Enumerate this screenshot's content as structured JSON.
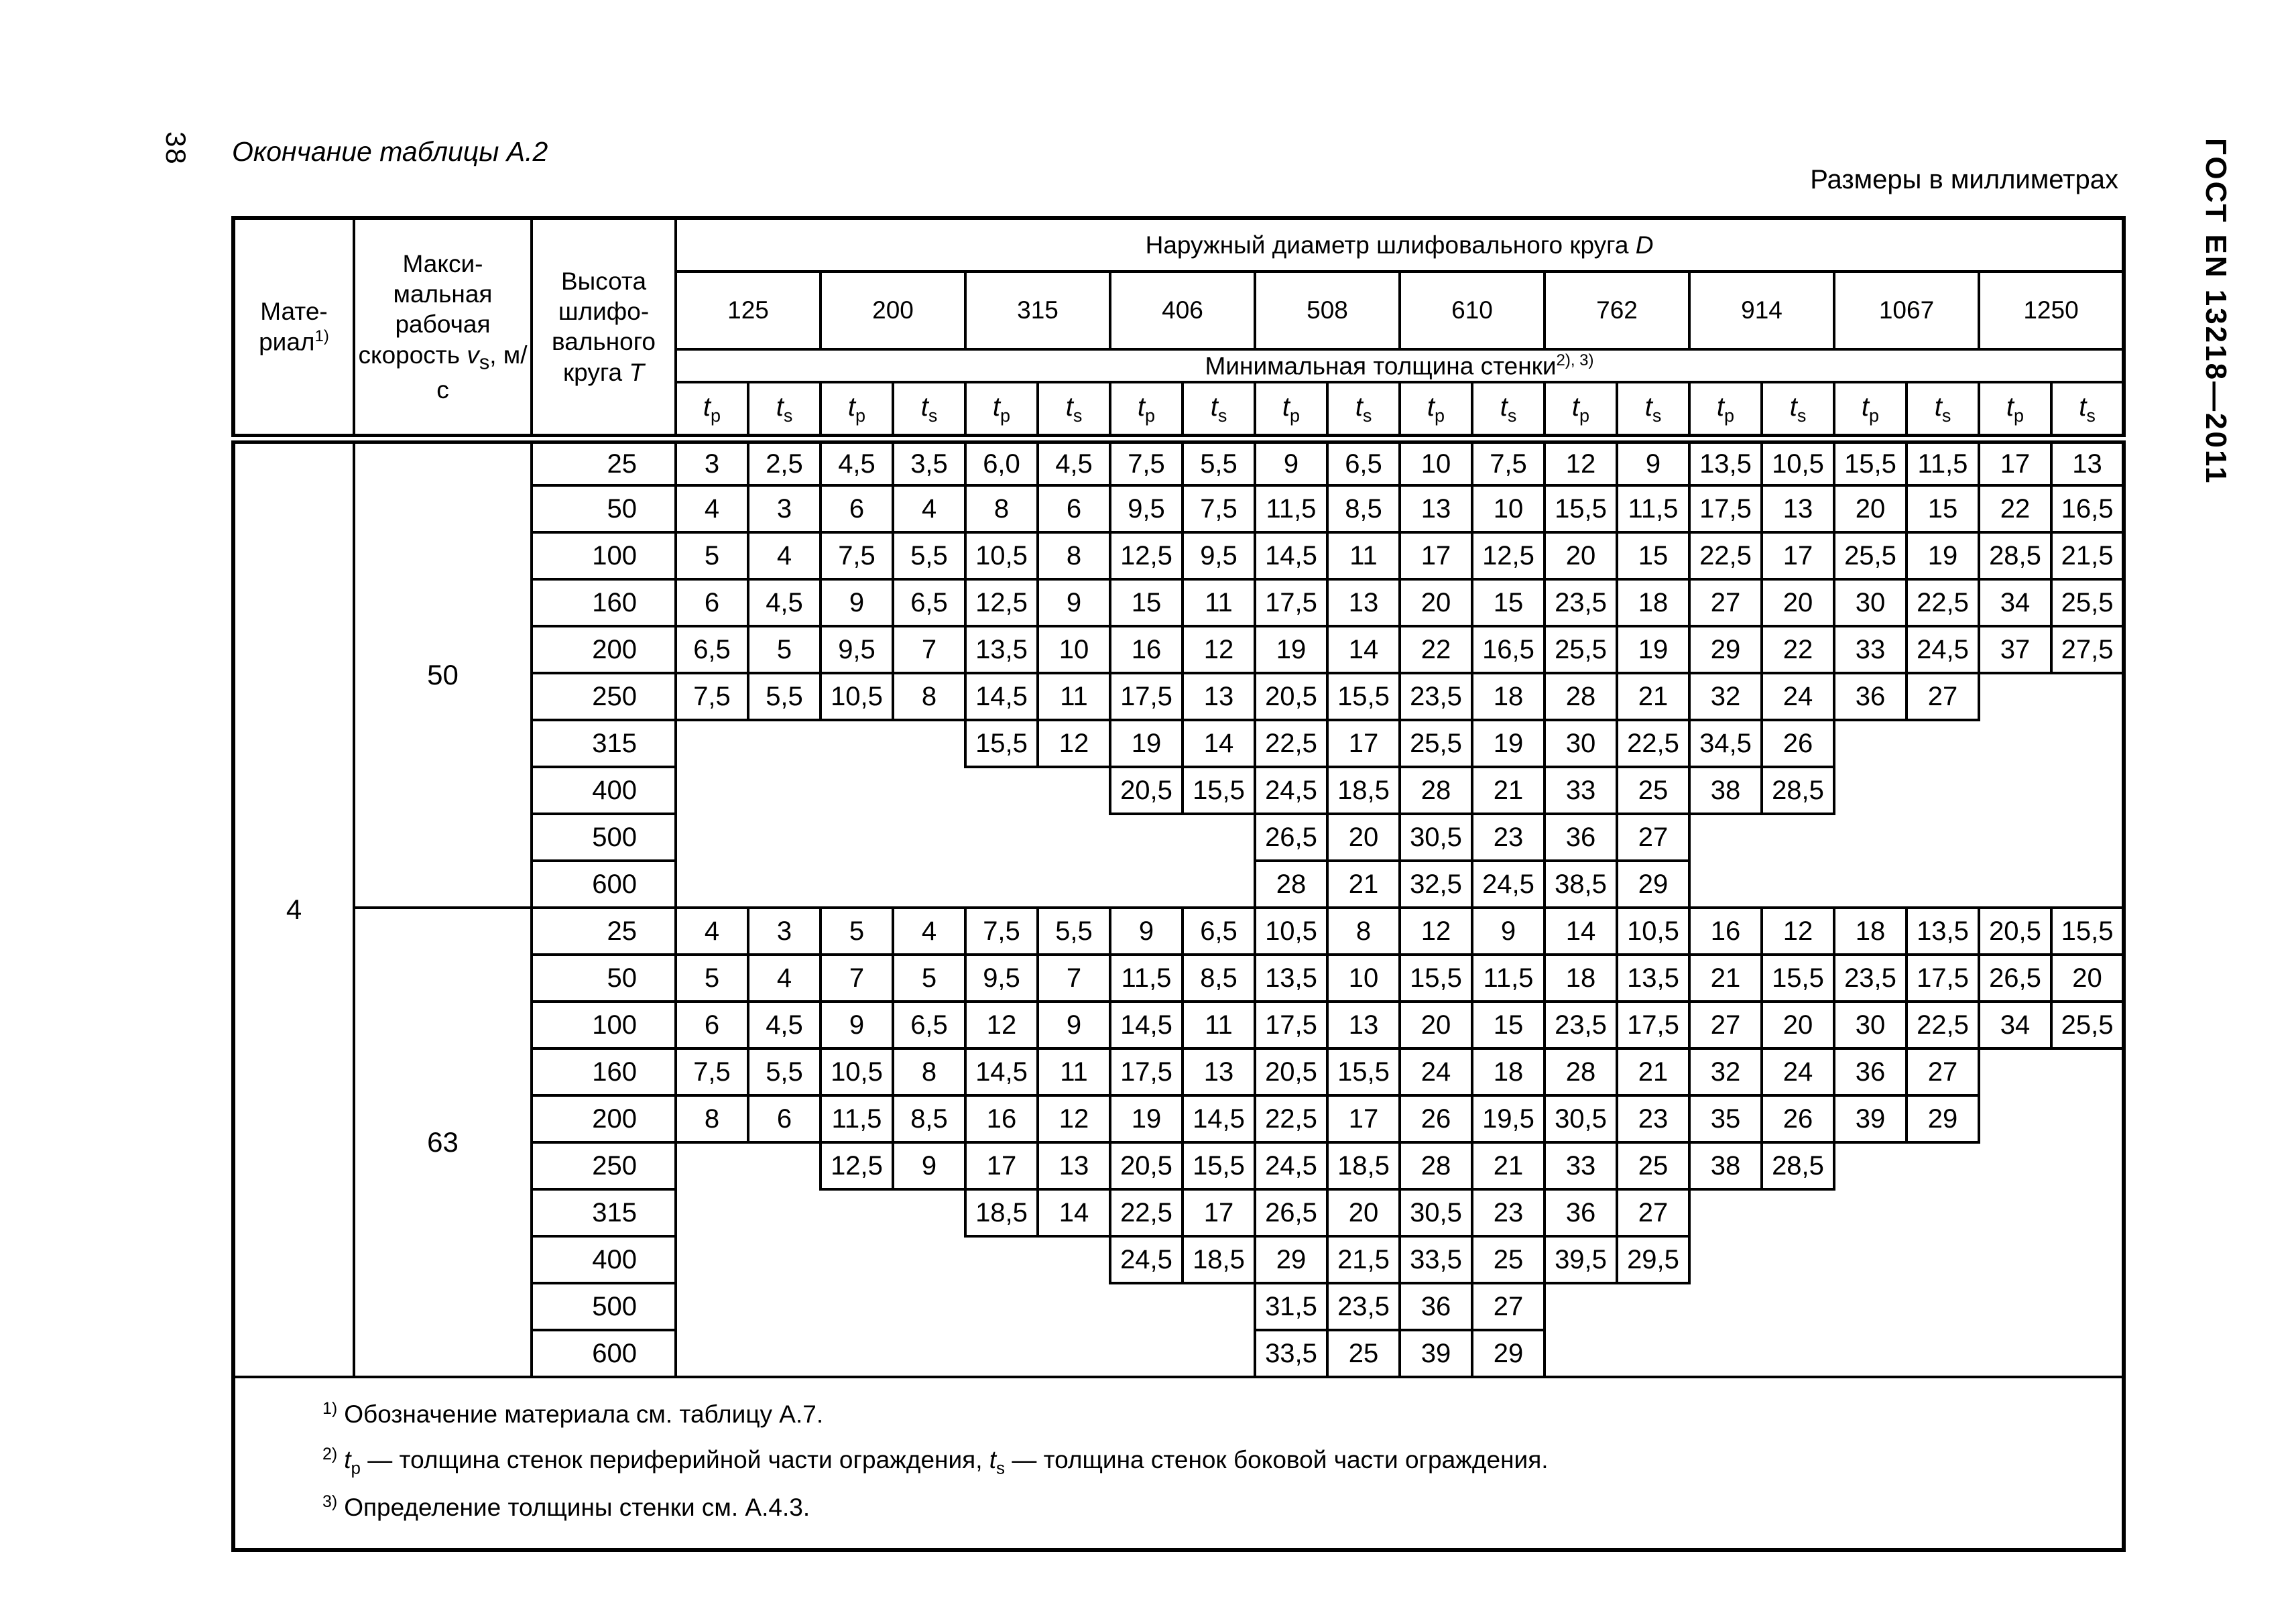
{
  "page": {
    "number": "38",
    "caption": "Окончание таблицы А.2",
    "units_note": "Размеры в миллиметрах",
    "standard_code": "ГОСТ EN 13218—2011"
  },
  "table": {
    "header": {
      "material_line1": "Мате-",
      "material_line2": "риал",
      "material_note": "1)",
      "speed_text": "Макси-мальная рабочая скорость",
      "speed_var": "v",
      "speed_var_sub": "s",
      "speed_units": ", м/с",
      "height_text": "Высота шлифо- вального круга",
      "height_var": "T",
      "diameter_title": "Наружный диаметр шлифовального круга",
      "diameter_var": "D",
      "diameters": [
        "125",
        "200",
        "315",
        "406",
        "508",
        "610",
        "762",
        "914",
        "1067",
        "1250"
      ],
      "thickness_title": "Минимальная толщина стенки",
      "thickness_note": "2), 3)",
      "t_var": "t",
      "tp_sub": "p",
      "ts_sub": "s"
    },
    "material": "4",
    "sections": [
      {
        "speed": "50",
        "rows": [
          {
            "height": "25",
            "start": 0,
            "values": [
              "3",
              "2,5",
              "4,5",
              "3,5",
              "6,0",
              "4,5",
              "7,5",
              "5,5",
              "9",
              "6,5",
              "10",
              "7,5",
              "12",
              "9",
              "13,5",
              "10,5",
              "15,5",
              "11,5",
              "17",
              "13"
            ]
          },
          {
            "height": "50",
            "start": 0,
            "values": [
              "4",
              "3",
              "6",
              "4",
              "8",
              "6",
              "9,5",
              "7,5",
              "11,5",
              "8,5",
              "13",
              "10",
              "15,5",
              "11,5",
              "17,5",
              "13",
              "20",
              "15",
              "22",
              "16,5"
            ]
          },
          {
            "height": "100",
            "start": 0,
            "values": [
              "5",
              "4",
              "7,5",
              "5,5",
              "10,5",
              "8",
              "12,5",
              "9,5",
              "14,5",
              "11",
              "17",
              "12,5",
              "20",
              "15",
              "22,5",
              "17",
              "25,5",
              "19",
              "28,5",
              "21,5"
            ]
          },
          {
            "height": "160",
            "start": 0,
            "values": [
              "6",
              "4,5",
              "9",
              "6,5",
              "12,5",
              "9",
              "15",
              "11",
              "17,5",
              "13",
              "20",
              "15",
              "23,5",
              "18",
              "27",
              "20",
              "30",
              "22,5",
              "34",
              "25,5"
            ]
          },
          {
            "height": "200",
            "start": 0,
            "values": [
              "6,5",
              "5",
              "9,5",
              "7",
              "13,5",
              "10",
              "16",
              "12",
              "19",
              "14",
              "22",
              "16,5",
              "25,5",
              "19",
              "29",
              "22",
              "33",
              "24,5",
              "37",
              "27,5"
            ]
          },
          {
            "height": "250",
            "start": 0,
            "values": [
              "7,5",
              "5,5",
              "10,5",
              "8",
              "14,5",
              "11",
              "17,5",
              "13",
              "20,5",
              "15,5",
              "23,5",
              "18",
              "28",
              "21",
              "32",
              "24",
              "36",
              "27"
            ]
          },
          {
            "height": "315",
            "start": 2,
            "values": [
              "15,5",
              "12",
              "19",
              "14",
              "22,5",
              "17",
              "25,5",
              "19",
              "30",
              "22,5",
              "34,5",
              "26"
            ]
          },
          {
            "height": "400",
            "start": 3,
            "values": [
              "20,5",
              "15,5",
              "24,5",
              "18,5",
              "28",
              "21",
              "33",
              "25",
              "38",
              "28,5"
            ]
          },
          {
            "height": "500",
            "start": 4,
            "values": [
              "26,5",
              "20",
              "30,5",
              "23",
              "36",
              "27"
            ]
          },
          {
            "height": "600",
            "start": 4,
            "values": [
              "28",
              "21",
              "32,5",
              "24,5",
              "38,5",
              "29"
            ]
          }
        ]
      },
      {
        "speed": "63",
        "rows": [
          {
            "height": "25",
            "start": 0,
            "values": [
              "4",
              "3",
              "5",
              "4",
              "7,5",
              "5,5",
              "9",
              "6,5",
              "10,5",
              "8",
              "12",
              "9",
              "14",
              "10,5",
              "16",
              "12",
              "18",
              "13,5",
              "20,5",
              "15,5"
            ]
          },
          {
            "height": "50",
            "start": 0,
            "values": [
              "5",
              "4",
              "7",
              "5",
              "9,5",
              "7",
              "11,5",
              "8,5",
              "13,5",
              "10",
              "15,5",
              "11,5",
              "18",
              "13,5",
              "21",
              "15,5",
              "23,5",
              "17,5",
              "26,5",
              "20"
            ]
          },
          {
            "height": "100",
            "start": 0,
            "values": [
              "6",
              "4,5",
              "9",
              "6,5",
              "12",
              "9",
              "14,5",
              "11",
              "17,5",
              "13",
              "20",
              "15",
              "23,5",
              "17,5",
              "27",
              "20",
              "30",
              "22,5",
              "34",
              "25,5"
            ]
          },
          {
            "height": "160",
            "start": 0,
            "values": [
              "7,5",
              "5,5",
              "10,5",
              "8",
              "14,5",
              "11",
              "17,5",
              "13",
              "20,5",
              "15,5",
              "24",
              "18",
              "28",
              "21",
              "32",
              "24",
              "36",
              "27"
            ]
          },
          {
            "height": "200",
            "start": 0,
            "values": [
              "8",
              "6",
              "11,5",
              "8,5",
              "16",
              "12",
              "19",
              "14,5",
              "22,5",
              "17",
              "26",
              "19,5",
              "30,5",
              "23",
              "35",
              "26",
              "39",
              "29"
            ]
          },
          {
            "height": "250",
            "start": 1,
            "values": [
              "12,5",
              "9",
              "17",
              "13",
              "20,5",
              "15,5",
              "24,5",
              "18,5",
              "28",
              "21",
              "33",
              "25",
              "38",
              "28,5"
            ]
          },
          {
            "height": "315",
            "start": 2,
            "values": [
              "18,5",
              "14",
              "22,5",
              "17",
              "26,5",
              "20",
              "30,5",
              "23",
              "36",
              "27"
            ]
          },
          {
            "height": "400",
            "start": 3,
            "values": [
              "24,5",
              "18,5",
              "29",
              "21,5",
              "33,5",
              "25",
              "39,5",
              "29,5"
            ]
          },
          {
            "height": "500",
            "start": 4,
            "values": [
              "31,5",
              "23,5",
              "36",
              "27"
            ]
          },
          {
            "height": "600",
            "start": 4,
            "values": [
              "33,5",
              "25",
              "39",
              "29"
            ]
          }
        ]
      }
    ],
    "notes": {
      "n1": {
        "sup": "1)",
        "text": "Обозначение материала см. таблицу А.7."
      },
      "n2": {
        "sup": "2)",
        "var1": "t",
        "sub1": "p",
        "mid1": " — толщина стенок  периферийной части ограждения, ",
        "var2": "t",
        "sub2": "s",
        "mid2": " — толщина стенок  боковой части ограждения."
      },
      "n3": {
        "sup": "3)",
        "text": "Определение толщины стенки см. А.4.3."
      }
    }
  }
}
